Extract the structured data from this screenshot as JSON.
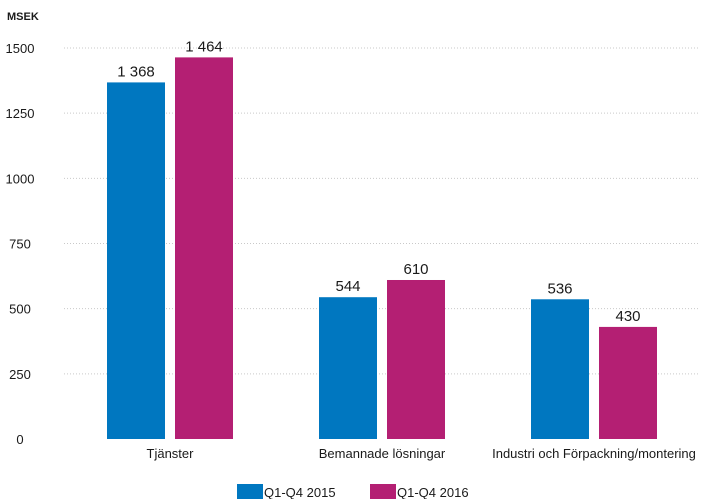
{
  "chart_data": {
    "type": "bar",
    "unit_label": "MSEK",
    "title": "",
    "xlabel": "",
    "ylabel": "",
    "categories": [
      "Tjänster",
      "Bemannade lösningar",
      "Industri och Förpackning/montering"
    ],
    "series": [
      {
        "name": "Q1-Q4 2015",
        "color": "#0077c0",
        "values": [
          1368,
          544,
          536
        ],
        "labels": [
          "1 368",
          "544",
          "536"
        ]
      },
      {
        "name": "Q1-Q4 2016",
        "color": "#b41f73",
        "values": [
          1464,
          610,
          430
        ],
        "labels": [
          "1 464",
          "610",
          "430"
        ]
      }
    ],
    "ylim": [
      0,
      1500
    ],
    "yticks": [
      0,
      250,
      500,
      750,
      1000,
      1250,
      1500
    ],
    "ytick_labels": [
      "0",
      "250",
      "500",
      "750",
      "1000",
      "1250",
      "1500"
    ],
    "grid": true,
    "legend_position": "bottom-center"
  }
}
